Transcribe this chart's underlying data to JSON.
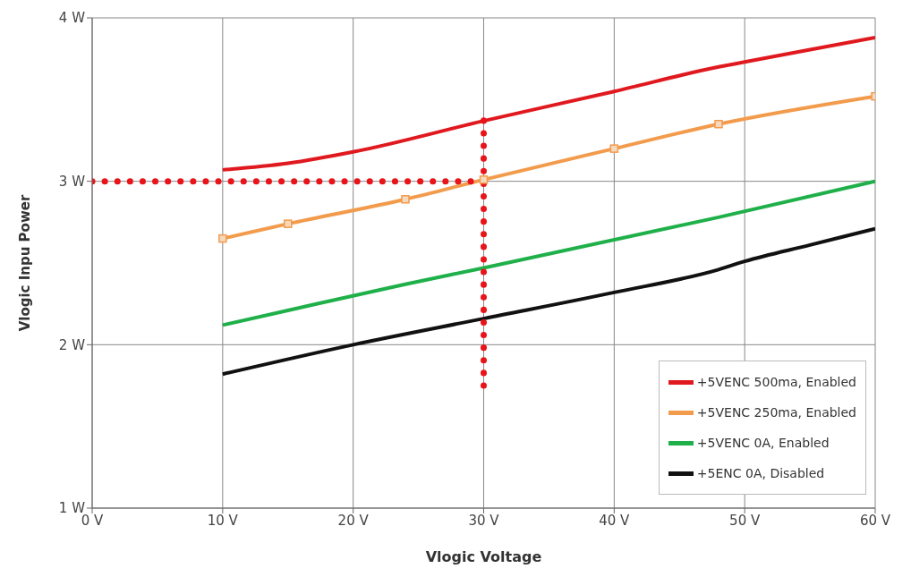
{
  "chart_data": {
    "type": "line",
    "xlabel": "Vlogic Voltage",
    "ylabel": "Vlogic Inpu Power",
    "xlim": [
      0,
      60
    ],
    "ylim": [
      1,
      4
    ],
    "xticks": [
      {
        "value": 0,
        "label": "0 V"
      },
      {
        "value": 10,
        "label": "10 V"
      },
      {
        "value": 20,
        "label": "20 V"
      },
      {
        "value": 30,
        "label": "30 V"
      },
      {
        "value": 40,
        "label": "40 V"
      },
      {
        "value": 50,
        "label": "50 V"
      },
      {
        "value": 60,
        "label": "60 V"
      }
    ],
    "yticks": [
      {
        "value": 1,
        "label": "1 W"
      },
      {
        "value": 2,
        "label": "2 W"
      },
      {
        "value": 3,
        "label": "3 W"
      },
      {
        "value": 4,
        "label": "4 W"
      }
    ],
    "grid": true,
    "legend": "bottom right",
    "marker": "none",
    "line_style": "solid",
    "series": [
      {
        "name": "+5VENC 500ma, Enabled",
        "color": "#e0191f",
        "x": [
          10,
          15,
          20,
          30,
          40,
          48,
          50,
          60
        ],
        "values": [
          3.07,
          3.11,
          3.18,
          3.37,
          3.55,
          3.7,
          3.73,
          3.88
        ]
      },
      {
        "name": "+5VENC 250ma, Enabled",
        "color": "#f39b4c",
        "marker": "square",
        "x": [
          10,
          15,
          24,
          30,
          40,
          48,
          60
        ],
        "values": [
          2.65,
          2.74,
          2.89,
          3.01,
          3.2,
          3.35,
          3.52
        ]
      },
      {
        "name": "+5VENC 0A, Enabled",
        "color": "#1fb04a",
        "x": [
          10,
          15,
          24,
          30,
          48,
          60
        ],
        "values": [
          2.12,
          2.21,
          2.37,
          2.47,
          2.78,
          3.0
        ]
      },
      {
        "name": "+5ENC 0A, Disabled",
        "color": "#111111",
        "x": [
          10,
          20,
          30,
          40,
          48,
          50,
          55,
          60
        ],
        "values": [
          1.82,
          2.0,
          2.16,
          2.32,
          2.46,
          2.51,
          2.61,
          2.71
        ]
      },
      {
        "color": "#e8141a",
        "line_style": "dotted",
        "x": [
          0,
          30
        ],
        "values": [
          3,
          3
        ]
      },
      {
        "color": "#e8141a",
        "line_style": "dotted",
        "x": [
          30,
          30
        ],
        "values": [
          1.75,
          3.4
        ]
      }
    ]
  }
}
